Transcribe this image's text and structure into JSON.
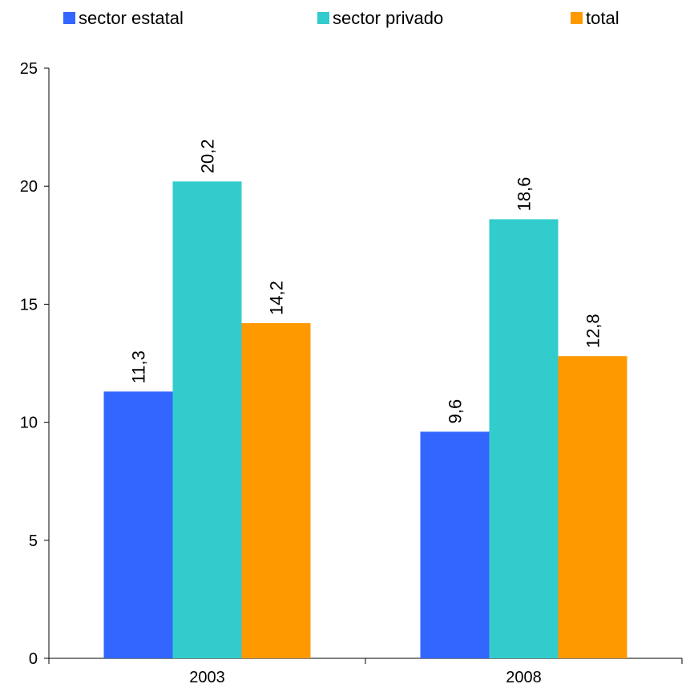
{
  "chart_data": {
    "type": "bar",
    "categories": [
      "2003",
      "2008"
    ],
    "series": [
      {
        "name": "sector estatal",
        "values": [
          11.3,
          9.6
        ],
        "labels": [
          "11,3",
          "9,6"
        ],
        "color": "#3366ff"
      },
      {
        "name": "sector privado",
        "values": [
          20.2,
          18.6
        ],
        "labels": [
          "20,2",
          "18,6"
        ],
        "color": "#33cccc"
      },
      {
        "name": "total",
        "values": [
          14.2,
          12.8
        ],
        "labels": [
          "14,2",
          "12,8"
        ],
        "color": "#ff9900"
      }
    ],
    "title": "",
    "xlabel": "",
    "ylabel": "",
    "ylim": [
      0,
      25
    ],
    "yticks": [
      0,
      5,
      10,
      15,
      20,
      25
    ],
    "grid": false,
    "legend_position": "top",
    "data_label_orientation": "vertical"
  }
}
